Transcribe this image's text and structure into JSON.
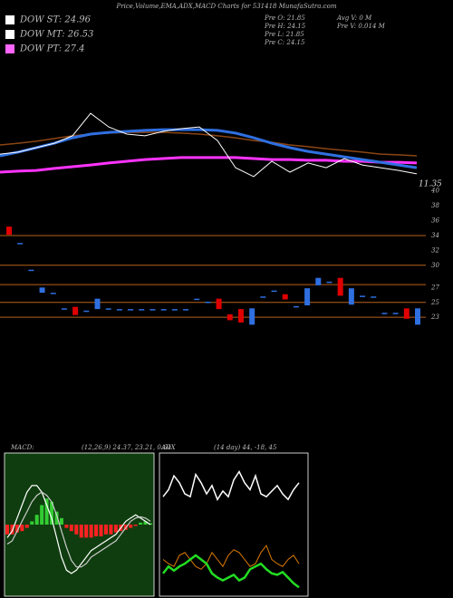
{
  "header": {
    "title": "Price,Volume,EMA,ADX,MACD Charts for 531418 MunafaSutra.com",
    "legend": [
      {
        "text": "DOW ST: 24.96",
        "color": "#ffffff"
      },
      {
        "text": "DOW MT: 26.53",
        "color": "#ffffff"
      },
      {
        "text": "DOW PT: 27.4",
        "color": "#ff66ff"
      }
    ],
    "stats_left": [
      "Pre  O: 21.85",
      "Pre  H: 24.15",
      "Pre  L: 21.85",
      "Pre  C: 24.15"
    ],
    "stats_right": [
      "Avg V: 0  M",
      "Pre  V: 0.014  M"
    ]
  },
  "chart_data": [
    {
      "type": "line",
      "annotation": "11.35",
      "ylim": [
        0,
        100
      ],
      "series": [
        {
          "name": "EMA brown",
          "color": "#8b4513",
          "width": 1.5,
          "values": [
            30,
            31.3,
            32.7,
            34.7,
            36.7,
            38,
            38.7,
            39.3,
            39.3,
            39.3,
            38.7,
            38,
            36.7,
            35.3,
            33.3,
            32,
            30,
            28.7,
            27.3,
            26,
            24.7,
            23.3,
            22.7,
            22
          ]
        },
        {
          "name": "EMA magenta",
          "color": "#ff33ff",
          "width": 3,
          "values": [
            10,
            10.7,
            11.3,
            12.7,
            14,
            15.3,
            16.7,
            18,
            19.3,
            20,
            20.7,
            20.7,
            20.7,
            20.7,
            20,
            19.3,
            19.3,
            18.7,
            18.7,
            18,
            18,
            17.3,
            17.3,
            16.7
          ]
        },
        {
          "name": "EMA blue",
          "color": "#2f6fe0",
          "width": 3,
          "values": [
            22,
            24.7,
            28,
            31.3,
            35.3,
            38,
            39.3,
            40,
            40.7,
            41.3,
            41.3,
            41.3,
            40.7,
            38.7,
            35.3,
            31.3,
            28,
            25.3,
            23.3,
            21.3,
            19.3,
            17.3,
            15.3,
            13.3
          ]
        },
        {
          "name": "Price",
          "color": "#ffffff",
          "width": 1,
          "values": [
            23.3,
            24.7,
            28,
            31.3,
            36.7,
            53.3,
            43.3,
            38,
            36.7,
            40,
            42,
            43.3,
            33.3,
            13.3,
            6.7,
            18,
            10,
            16.7,
            13.3,
            20,
            15.3,
            13.3,
            11.3,
            8.7
          ]
        }
      ]
    },
    {
      "type": "candlestick",
      "ylim": [
        21.8,
        40.7
      ],
      "yticks": [
        40,
        38,
        36,
        34,
        32,
        30,
        27,
        25,
        23
      ],
      "levels": [
        34,
        30,
        27.4,
        25,
        23
      ],
      "level_color": "#b8621b",
      "up_color": "#2f6fe0",
      "down_color": "#e00000",
      "open": [
        35.2,
        33.0,
        29.4,
        26.3,
        26.3,
        24.2,
        24.4,
        23.9,
        24.1,
        24.2,
        24.1,
        24.1,
        24.1,
        24.1,
        24.1,
        24.1,
        24.1,
        25.5,
        25.1,
        25.5,
        23.4,
        24.1,
        22.0,
        25.8,
        26.6,
        26.1,
        24.5,
        24.6,
        27.3,
        27.8,
        28.3,
        24.7,
        25.9,
        25.8,
        23.6,
        23.6,
        24.2,
        22.0
      ],
      "close": [
        34.1,
        33.0,
        29.4,
        27.0,
        26.3,
        24.2,
        23.3,
        23.9,
        25.5,
        24.2,
        24.1,
        24.1,
        24.1,
        24.1,
        24.1,
        24.1,
        24.1,
        25.5,
        25.1,
        24.1,
        22.6,
        22.3,
        24.2,
        25.8,
        26.6,
        25.4,
        24.5,
        26.9,
        28.3,
        27.8,
        25.9,
        26.9,
        25.9,
        25.8,
        23.6,
        23.6,
        22.8,
        24.2
      ]
    },
    {
      "type": "macd",
      "title": "MACD:",
      "subtitle": "(12,26,9) 24.37, 23.21, 0.64",
      "ylim": [
        -1.1,
        1.1
      ],
      "histogram": [
        -0.15,
        -0.15,
        -0.12,
        -0.1,
        -0.05,
        0.05,
        0.15,
        0.3,
        0.4,
        0.35,
        0.2,
        0.1,
        -0.05,
        -0.1,
        -0.15,
        -0.2,
        -0.2,
        -0.2,
        -0.18,
        -0.18,
        -0.15,
        -0.15,
        -0.12,
        -0.1,
        -0.08,
        -0.05,
        -0.02,
        0.03,
        0.05,
        0.02
      ],
      "series": [
        {
          "name": "MACD",
          "color": "#ffffff",
          "values": [
            -0.2,
            -0.1,
            0.1,
            0.3,
            0.5,
            0.6,
            0.6,
            0.5,
            0.3,
            0.1,
            -0.2,
            -0.5,
            -0.7,
            -0.75,
            -0.7,
            -0.6,
            -0.5,
            -0.4,
            -0.35,
            -0.3,
            -0.25,
            -0.2,
            -0.15,
            -0.05,
            0.05,
            0.1,
            0.15,
            0.1,
            0.05,
            0.0
          ]
        },
        {
          "name": "Signal",
          "color": "#cccccc",
          "values": [
            -0.3,
            -0.25,
            -0.1,
            0.05,
            0.2,
            0.35,
            0.45,
            0.5,
            0.45,
            0.35,
            0.15,
            -0.1,
            -0.35,
            -0.55,
            -0.65,
            -0.65,
            -0.6,
            -0.5,
            -0.45,
            -0.4,
            -0.35,
            -0.3,
            -0.25,
            -0.15,
            -0.05,
            0.05,
            0.1,
            0.12,
            0.1,
            0.05
          ]
        }
      ],
      "pos_color": "#33cc33",
      "neg_color": "#ff2222"
    },
    {
      "type": "adx",
      "title": "ADX",
      "subtitle": "(14 day) 44, -18, 45",
      "ylim": [
        0,
        100
      ],
      "series": [
        {
          "name": "ADX",
          "color": "#ffffff",
          "width": 1.5,
          "values": [
            70,
            75,
            85,
            80,
            72,
            70,
            86,
            80,
            72,
            78,
            68,
            74,
            70,
            82,
            88,
            80,
            75,
            85,
            72,
            70,
            74,
            78,
            72,
            68,
            75,
            80
          ]
        },
        {
          "name": "+DI",
          "color": "#e07b00",
          "width": 1,
          "values": [
            25,
            22,
            20,
            28,
            30,
            25,
            20,
            18,
            22,
            30,
            25,
            20,
            28,
            32,
            30,
            25,
            20,
            22,
            30,
            35,
            25,
            22,
            20,
            25,
            28,
            22
          ]
        },
        {
          "name": "-DI",
          "color": "#22dd22",
          "width": 2.5,
          "values": [
            15,
            20,
            17,
            20,
            22,
            25,
            28,
            25,
            22,
            15,
            12,
            10,
            12,
            14,
            10,
            12,
            18,
            20,
            22,
            18,
            15,
            14,
            16,
            12,
            8,
            5
          ]
        }
      ]
    }
  ]
}
